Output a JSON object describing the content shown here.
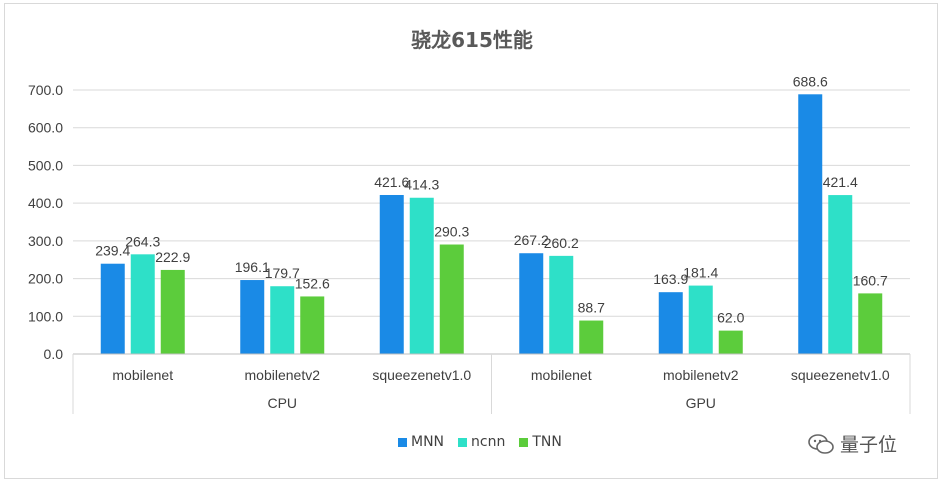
{
  "chart_data": {
    "type": "bar",
    "title": "骁龙615性能",
    "xlabel": "",
    "ylabel": "",
    "ylim": [
      0,
      700
    ],
    "yticks": [
      "0.0",
      "100.0",
      "200.0",
      "300.0",
      "400.0",
      "500.0",
      "600.0",
      "700.0"
    ],
    "grid": true,
    "legend_position": "bottom",
    "groups": [
      {
        "label": "CPU",
        "categories": [
          "mobilenet",
          "mobilenetv2",
          "squeezenetv1.0"
        ]
      },
      {
        "label": "GPU",
        "categories": [
          "mobilenet",
          "mobilenetv2",
          "squeezenetv1.0"
        ]
      }
    ],
    "series": [
      {
        "name": "MNN",
        "color": "#1a8ae6",
        "values": [
          239.4,
          196.1,
          421.6,
          267.2,
          163.9,
          688.6
        ],
        "labels": [
          "239.4",
          "196.1",
          "421.6",
          "267.2",
          "163.9",
          "688.6"
        ]
      },
      {
        "name": "ncnn",
        "color": "#2ee0c8",
        "values": [
          264.3,
          179.7,
          414.3,
          260.2,
          181.4,
          421.4
        ],
        "labels": [
          "264.3",
          "179.7",
          "414.3",
          "260.2",
          "181.4",
          "421.4"
        ]
      },
      {
        "name": "TNN",
        "color": "#5ccc3c",
        "values": [
          222.9,
          152.6,
          290.3,
          88.7,
          62.0,
          160.7
        ],
        "labels": [
          "222.9",
          "152.6",
          "290.3",
          "88.7",
          "62.0",
          "160.7"
        ]
      }
    ]
  },
  "watermark": {
    "text": "量子位",
    "icon": "wechat-icon"
  }
}
